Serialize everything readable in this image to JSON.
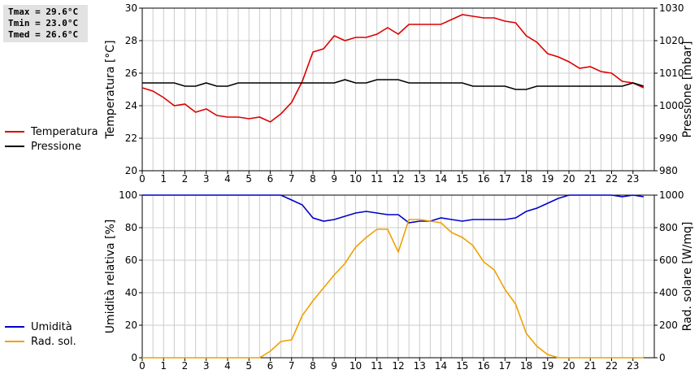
{
  "stats": {
    "tmax": "Tmax = 29.6°C",
    "tmin": "Tmin = 23.0°C",
    "tmed": "Tmed = 26.6°C"
  },
  "colors": {
    "temperature": "#dd0000",
    "pressure": "#000000",
    "humidity": "#0000cc",
    "radiation": "#f0a000",
    "grid": "#cccccc"
  },
  "chart_data": [
    {
      "type": "line",
      "xlim": [
        0,
        24
      ],
      "x_ticks": [
        0,
        1,
        2,
        3,
        4,
        5,
        6,
        7,
        8,
        9,
        10,
        11,
        12,
        13,
        14,
        15,
        16,
        17,
        18,
        19,
        20,
        21,
        22,
        23
      ],
      "left_axis": {
        "label": "Temperatura [°C]",
        "lim": [
          20,
          30
        ],
        "ticks": [
          20,
          22,
          24,
          26,
          28,
          30
        ]
      },
      "right_axis": {
        "label": "Pressione [mbar]",
        "lim": [
          980,
          1030
        ],
        "ticks": [
          980,
          990,
          1000,
          1010,
          1020,
          1030
        ]
      },
      "series": [
        {
          "name": "Temperatura",
          "axis": "left",
          "color": "#dd0000",
          "x": [
            0,
            0.5,
            1,
            1.5,
            2,
            2.5,
            3,
            3.5,
            4,
            4.5,
            5,
            5.5,
            6,
            6.5,
            7,
            7.5,
            8,
            8.5,
            9,
            9.5,
            10,
            10.5,
            11,
            11.5,
            12,
            12.5,
            13,
            13.5,
            14,
            14.5,
            15,
            15.5,
            16,
            16.5,
            17,
            17.5,
            18,
            18.5,
            19,
            19.5,
            20,
            20.5,
            21,
            21.5,
            22,
            22.5,
            23,
            23.5
          ],
          "values": [
            25.1,
            24.9,
            24.5,
            24.0,
            24.1,
            23.6,
            23.8,
            23.4,
            23.3,
            23.3,
            23.2,
            23.3,
            23.0,
            23.5,
            24.2,
            25.5,
            27.3,
            27.5,
            28.3,
            28.0,
            28.2,
            28.2,
            28.4,
            28.8,
            28.4,
            29.0,
            29.0,
            29.0,
            29.0,
            29.3,
            29.6,
            29.5,
            29.4,
            29.4,
            29.2,
            29.1,
            28.3,
            27.9,
            27.2,
            27.0,
            26.7,
            26.3,
            26.4,
            26.1,
            26.0,
            25.5,
            25.4,
            25.1
          ]
        },
        {
          "name": "Pressione",
          "axis": "right",
          "color": "#000000",
          "x": [
            0,
            0.5,
            1,
            1.5,
            2,
            2.5,
            3,
            3.5,
            4,
            4.5,
            5,
            5.5,
            6,
            6.5,
            7,
            7.5,
            8,
            8.5,
            9,
            9.5,
            10,
            10.5,
            11,
            11.5,
            12,
            12.5,
            13,
            13.5,
            14,
            14.5,
            15,
            15.5,
            16,
            16.5,
            17,
            17.5,
            18,
            18.5,
            19,
            19.5,
            20,
            20.5,
            21,
            21.5,
            22,
            22.5,
            23,
            23.5
          ],
          "values": [
            1007,
            1007,
            1007,
            1007,
            1006,
            1006,
            1007,
            1006,
            1006,
            1007,
            1007,
            1007,
            1007,
            1007,
            1007,
            1007,
            1007,
            1007,
            1007,
            1008,
            1007,
            1007,
            1008,
            1008,
            1008,
            1007,
            1007,
            1007,
            1007,
            1007,
            1007,
            1006,
            1006,
            1006,
            1006,
            1005,
            1005,
            1006,
            1006,
            1006,
            1006,
            1006,
            1006,
            1006,
            1006,
            1006,
            1007,
            1006
          ]
        }
      ]
    },
    {
      "type": "line",
      "xlim": [
        0,
        24
      ],
      "x_ticks": [
        0,
        1,
        2,
        3,
        4,
        5,
        6,
        7,
        8,
        9,
        10,
        11,
        12,
        13,
        14,
        15,
        16,
        17,
        18,
        19,
        20,
        21,
        22,
        23
      ],
      "left_axis": {
        "label": "Umidità relativa [%]",
        "lim": [
          0,
          100
        ],
        "ticks": [
          0,
          20,
          40,
          60,
          80,
          100
        ]
      },
      "right_axis": {
        "label": "Rad. solare [W/mq]",
        "lim": [
          0,
          1000
        ],
        "ticks": [
          0,
          200,
          400,
          600,
          800,
          1000
        ]
      },
      "series": [
        {
          "name": "Umidità",
          "axis": "left",
          "color": "#0000cc",
          "x": [
            0,
            0.5,
            1,
            1.5,
            2,
            2.5,
            3,
            3.5,
            4,
            4.5,
            5,
            5.5,
            6,
            6.5,
            7,
            7.5,
            8,
            8.5,
            9,
            9.5,
            10,
            10.5,
            11,
            11.5,
            12,
            12.5,
            13,
            13.5,
            14,
            14.5,
            15,
            15.5,
            16,
            16.5,
            17,
            17.5,
            18,
            18.5,
            19,
            19.5,
            20,
            20.5,
            21,
            21.5,
            22,
            22.5,
            23,
            23.5
          ],
          "values": [
            100,
            100,
            100,
            100,
            100,
            100,
            100,
            100,
            100,
            100,
            100,
            100,
            100,
            100,
            97,
            94,
            86,
            84,
            85,
            87,
            89,
            90,
            89,
            88,
            88,
            83,
            84,
            84,
            86,
            85,
            84,
            85,
            85,
            85,
            85,
            86,
            90,
            92,
            95,
            98,
            100,
            100,
            100,
            100,
            100,
            99,
            100,
            99
          ]
        },
        {
          "name": "Rad. sol.",
          "axis": "right",
          "color": "#f0a000",
          "x": [
            0,
            0.5,
            1,
            1.5,
            2,
            2.5,
            3,
            3.5,
            4,
            4.5,
            5,
            5.5,
            6,
            6.5,
            7,
            7.5,
            8,
            8.5,
            9,
            9.5,
            10,
            10.5,
            11,
            11.5,
            12,
            12.5,
            13,
            13.5,
            14,
            14.5,
            15,
            15.5,
            16,
            16.5,
            17,
            17.5,
            18,
            18.5,
            19,
            19.5,
            20,
            20.5,
            21,
            21.5,
            22,
            22.5,
            23,
            23.5
          ],
          "values": [
            0,
            0,
            0,
            0,
            0,
            0,
            0,
            0,
            0,
            0,
            0,
            0,
            40,
            100,
            110,
            260,
            350,
            430,
            510,
            580,
            680,
            740,
            790,
            790,
            650,
            850,
            850,
            840,
            830,
            770,
            740,
            690,
            590,
            540,
            420,
            330,
            150,
            70,
            20,
            0,
            0,
            0,
            0,
            0,
            0,
            0,
            0,
            0
          ]
        }
      ]
    }
  ]
}
